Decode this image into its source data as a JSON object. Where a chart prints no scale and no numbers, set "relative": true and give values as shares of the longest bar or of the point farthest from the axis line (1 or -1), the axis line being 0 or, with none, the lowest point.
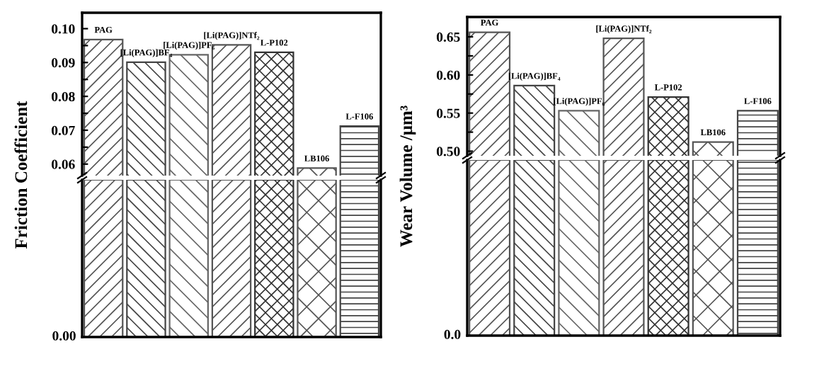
{
  "chart_data": [
    {
      "type": "bar",
      "ylabel": "Friction Coefficient",
      "categories": [
        "PAG",
        "[Li(PAG)]BF₄",
        "[Li(PAG)]PF₆",
        "[Li(PAG)]NTf₂",
        "L-P102",
        "LB106",
        "L-F106"
      ],
      "values": [
        0.0968,
        0.0901,
        0.0923,
        0.0952,
        0.093,
        0.0588,
        0.0712
      ],
      "colors": [
        "#555555",
        "#444444",
        "#666666",
        "#555555",
        "#333333",
        "#555555",
        "#444444"
      ],
      "ylim": [
        0.0566,
        0.1047
      ],
      "yticks": [
        {
          "value": 0.06,
          "label": "0.06"
        },
        {
          "value": 0.065,
          "label": null
        },
        {
          "value": 0.07,
          "label": "0.07"
        },
        {
          "value": 0.075,
          "label": null
        },
        {
          "value": 0.08,
          "label": "0.08"
        },
        {
          "value": 0.085,
          "label": null
        },
        {
          "value": 0.09,
          "label": "0.09"
        },
        {
          "value": 0.095,
          "label": null
        },
        {
          "value": 0.1,
          "label": "0.10"
        }
      ],
      "tick_labels": "y"
    },
    {
      "type": "bar",
      "categories": [
        null,
        null,
        null,
        null,
        null,
        null,
        null
      ],
      "relative": true,
      "values": [
        1,
        1,
        1,
        1,
        1,
        1,
        1
      ],
      "colors": [
        "#555555",
        "#444444",
        "#666666",
        "#555555",
        "#333333",
        "#555555",
        "#444444"
      ],
      "annotations": [
        "0.00"
      ],
      "tick_labels": false
    },
    {
      "type": "bar",
      "ylabel": "Wear Volume /μm³",
      "categories": [
        "PAG",
        "[Li(PAG)]BF₄",
        "[Li(PAG)]PF₆",
        "[Li(PAG)]NTf₂",
        "L-P102",
        "LB106",
        "L-F106"
      ],
      "values": [
        0.656,
        0.586,
        0.553,
        0.648,
        0.571,
        0.512,
        0.553
      ],
      "colors": [
        "#555555",
        "#444444",
        "#666666",
        "#555555",
        "#333333",
        "#555555",
        "#444444"
      ],
      "ylim": [
        0.494,
        0.676
      ],
      "yticks": [
        {
          "value": 0.5,
          "label": "0.50"
        },
        {
          "value": 0.525,
          "label": null
        },
        {
          "value": 0.55,
          "label": "0.55"
        },
        {
          "value": 0.575,
          "label": null
        },
        {
          "value": 0.6,
          "label": "0.60"
        },
        {
          "value": 0.625,
          "label": null
        },
        {
          "value": 0.65,
          "label": "0.65"
        }
      ],
      "tick_labels": "y"
    },
    {
      "type": "bar",
      "categories": [
        null,
        null,
        null,
        null,
        null,
        null,
        null
      ],
      "relative": true,
      "values": [
        1,
        1,
        1,
        1,
        1,
        1,
        1
      ],
      "colors": [
        "#555555",
        "#444444",
        "#666666",
        "#555555",
        "#333333",
        "#555555",
        "#444444"
      ],
      "annotations": [
        "0.0"
      ],
      "tick_labels": false
    }
  ]
}
